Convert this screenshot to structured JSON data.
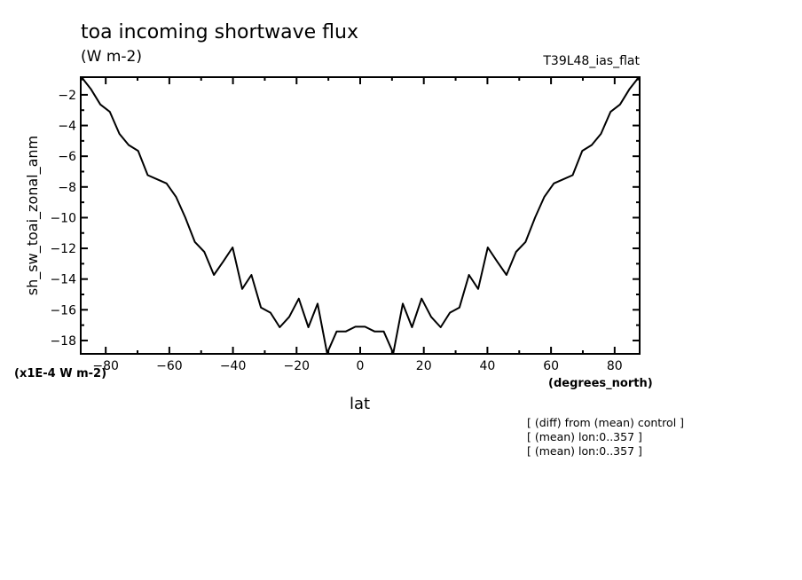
{
  "header": {
    "title": "toa incoming shortwave flux",
    "units": "(W m-2)",
    "run_label": "T39L48_ias_flat"
  },
  "annotations": [
    "[ (diff) from (mean) control ]",
    "[ (mean) lon:0..357 ]",
    "[ (mean) lon:0..357 ]"
  ],
  "chart_data": {
    "type": "line",
    "title": "toa incoming shortwave flux",
    "xlabel": "lat",
    "xunits": "(degrees_north)",
    "ylabel": "sh_sw_toai_zonal_anm",
    "yscale_label": "(x1E-4 W m-2)",
    "xlim": [
      -87.86,
      87.86
    ],
    "ylim": [
      -18.87,
      -0.85
    ],
    "xticks": [
      -80,
      -60,
      -40,
      -20,
      0,
      20,
      40,
      60,
      80
    ],
    "yticks": [
      -2,
      -4,
      -6,
      -8,
      -10,
      -12,
      -14,
      -16,
      -18
    ],
    "grid": false,
    "line_color": "#000000",
    "x": [
      -87.6,
      -84.7,
      -81.7,
      -78.7,
      -75.7,
      -72.8,
      -69.8,
      -66.8,
      -63.9,
      -60.9,
      -57.9,
      -55.0,
      -52.0,
      -49.0,
      -46.0,
      -43.1,
      -40.1,
      -37.1,
      -34.2,
      -31.2,
      -28.2,
      -25.3,
      -22.3,
      -19.3,
      -16.3,
      -13.4,
      -10.4,
      -7.4,
      -4.5,
      -1.5,
      1.5,
      4.5,
      7.4,
      10.4,
      13.4,
      16.3,
      19.3,
      22.3,
      25.3,
      28.2,
      31.2,
      34.2,
      37.1,
      40.1,
      43.1,
      46.0,
      49.0,
      52.0,
      55.0,
      57.9,
      60.9,
      63.9,
      66.8,
      69.8,
      72.8,
      75.7,
      78.7,
      81.7,
      84.7,
      87.6
    ],
    "y": [
      -0.85,
      -1.61,
      -2.63,
      -3.11,
      -4.54,
      -5.27,
      -5.65,
      -7.23,
      -7.5,
      -7.77,
      -8.64,
      -9.98,
      -11.58,
      -12.23,
      -13.73,
      -12.87,
      -11.94,
      -14.64,
      -13.73,
      -15.85,
      -16.19,
      -17.14,
      -16.46,
      -15.27,
      -17.14,
      -15.6,
      -18.83,
      -17.41,
      -17.41,
      -17.1,
      -17.1,
      -17.41,
      -17.41,
      -18.83,
      -15.6,
      -17.14,
      -15.27,
      -16.46,
      -17.14,
      -16.19,
      -15.85,
      -13.73,
      -14.64,
      -11.94,
      -12.87,
      -13.73,
      -12.23,
      -11.58,
      -9.98,
      -8.64,
      -7.77,
      -7.5,
      -7.23,
      -5.65,
      -5.27,
      -4.54,
      -3.11,
      -2.63,
      -1.61,
      -0.85
    ]
  }
}
